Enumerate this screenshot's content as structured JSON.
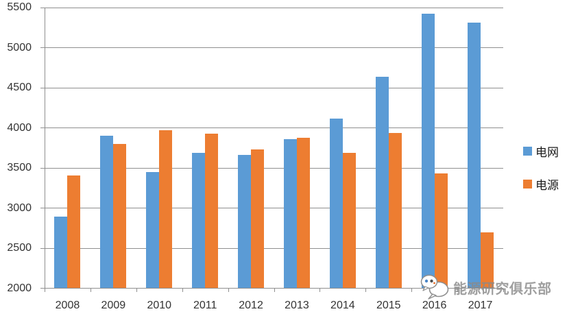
{
  "chart_data": {
    "type": "bar",
    "title": "",
    "xlabel": "",
    "ylabel": "",
    "categories": [
      "2008",
      "2009",
      "2010",
      "2011",
      "2012",
      "2013",
      "2014",
      "2015",
      "2016",
      "2017"
    ],
    "series": [
      {
        "key": "grid",
        "name": "电网",
        "color": "#5B9BD5",
        "values": [
          2895,
          3898,
          3448,
          3690,
          3661,
          3856,
          4118,
          4640,
          5426,
          5315
        ]
      },
      {
        "key": "source",
        "name": "电源",
        "color": "#ED7D31",
        "values": [
          3410,
          3803,
          3969,
          3928,
          3735,
          3873,
          3686,
          3936,
          3430,
          2700
        ]
      }
    ],
    "ylim": [
      2000,
      5500
    ],
    "yticks": [
      2000,
      2500,
      3000,
      3500,
      4000,
      4500,
      5000,
      5500
    ],
    "grid": true,
    "legend_position": "right-middle"
  },
  "watermark": {
    "icon": "wechat-icon",
    "text": "能源研究俱乐部"
  },
  "colors": {
    "bar_blue": "#5B9BD5",
    "bar_orange": "#ED7D31",
    "gridline": "#8f8f8f",
    "axis_text": "#333333",
    "watermark_text": "#8a8a8a",
    "background": "#FFFFFF"
  }
}
